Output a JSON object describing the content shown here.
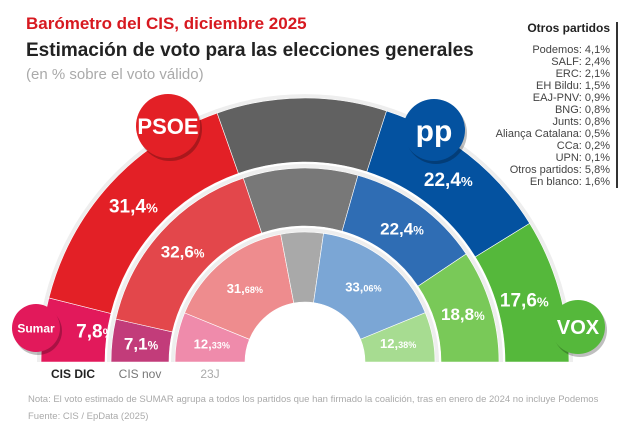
{
  "title": "Barómetro del CIS, diciembre 2025",
  "subtitle": "Estimación de voto para las elecciones generales",
  "unit_note": "(en % sobre el voto válido)",
  "others_panel": {
    "heading": "Otros partidos",
    "items": [
      "Podemos: 4,1%",
      "SALF: 2,4%",
      "ERC: 2,1%",
      "EH Bildu: 1,5%",
      "EAJ-PNV: 0,9%",
      "BNG: 0,8%",
      "Junts: 0,8%",
      "Aliança Catalana: 0,5%",
      "CCa: 0,2%",
      "UPN: 0,1%",
      "Otros partidos: 5,8%",
      "En blanco: 1,6%"
    ]
  },
  "footer": {
    "note": "Nota: El voto estimado de SUMAR agrupa a todos los partidos que han firmado la coalición, tras en enero de 2024 no incluye Podemos",
    "source": "Fuente: CIS / EpData (2025)"
  },
  "logos": {
    "psoe": "PSOE",
    "pp": "pp",
    "sumar": "Sumar",
    "vox": "VOX"
  },
  "chart_data": {
    "type": "hemicycle-donut",
    "parties": [
      "Sumar",
      "PSOE",
      "Otros",
      "PP",
      "VOX"
    ],
    "rings": [
      {
        "name": "CIS DIC",
        "values": [
          7.8,
          31.4,
          20.8,
          22.4,
          17.6
        ],
        "labels": [
          "7,8",
          "31,4",
          null,
          "22,4",
          "17,6"
        ],
        "colors": [
          "#e2195b",
          "#e32026",
          "#616161",
          "#0452a0",
          "#55b83b"
        ]
      },
      {
        "name": "CIS nov",
        "values": [
          7.1,
          32.6,
          19.1,
          22.4,
          18.8
        ],
        "labels": [
          "7,1",
          "32,6",
          null,
          "22,4",
          "18,8"
        ],
        "colors": [
          "#c23c7a",
          "#e3474b",
          "#787878",
          "#2f6db4",
          "#79c958"
        ]
      },
      {
        "name": "23J",
        "values": [
          12.33,
          31.68,
          10.55,
          33.06,
          12.38
        ],
        "labels": [
          "12,33",
          "31,68",
          null,
          "33,06",
          "12,38"
        ],
        "colors": [
          "#ef8bab",
          "#ee8c8e",
          "#a9a9a9",
          "#7ba6d5",
          "#a7dc91"
        ]
      }
    ]
  }
}
